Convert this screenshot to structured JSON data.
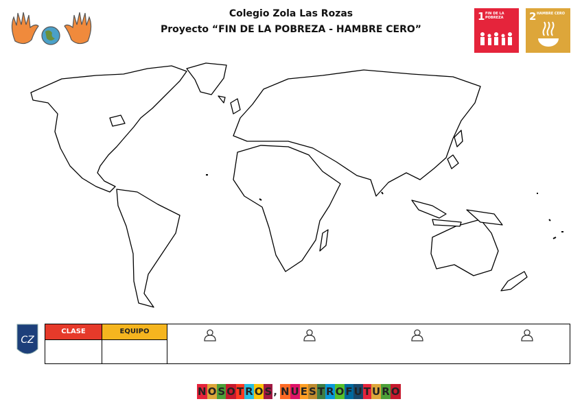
{
  "header": {
    "school": "Colegio Zola Las Rozas",
    "project": "Proyecto “FIN DE LA POBREZA - HAMBRE CERO”"
  },
  "goals": [
    {
      "number": 1,
      "label": "FIN DE LA POBREZA"
    },
    {
      "number": 2,
      "label": "HAMBRE CERO"
    }
  ],
  "table": {
    "headers": [
      "CLASE",
      "EQUIPO"
    ]
  },
  "footer": {
    "words": [
      "NOSOTROS",
      ",",
      "NUESTRO",
      "FUTURO"
    ]
  }
}
